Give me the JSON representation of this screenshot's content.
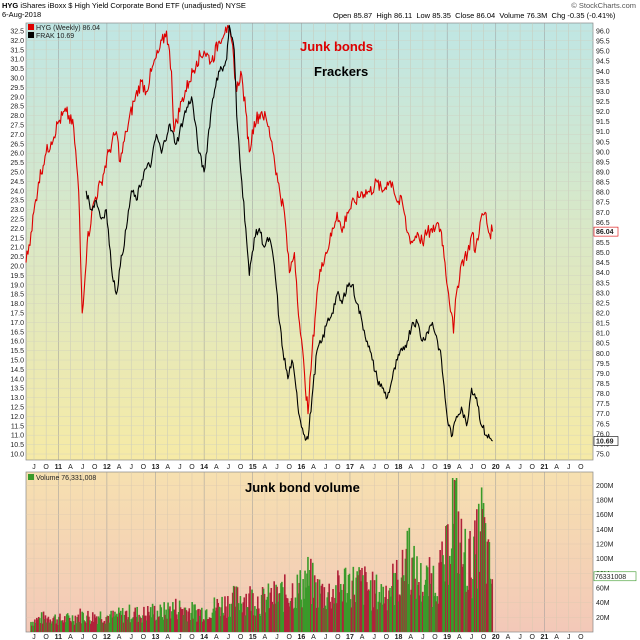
{
  "header": {
    "symbol": "HYG",
    "description": "iShares iBoxx $ High Yield Corporate Bond ETF (unadjusted)",
    "exchange": "NYSE",
    "date": "6-Aug-2018",
    "brand": "© StockCharts.com",
    "open_label": "Open",
    "open": "85.87",
    "high_label": "High",
    "high": "86.11",
    "low_label": "Low",
    "low": "85.35",
    "close_label": "Close",
    "close": "86.04",
    "volume_label": "Volume",
    "volume": "76.3M",
    "chg_label": "Chg",
    "chg": "-0.35 (-0.41%)"
  },
  "colors": {
    "hyg": "#dd0000",
    "frak": "#000000",
    "vol_up": "#3a9a2a",
    "vol_down": "#b0223a",
    "price_bg_top": "#bfe6e4",
    "price_bg_bottom": "#f6eaa6",
    "vol_bg_top": "#f6e0b0",
    "vol_bg_bottom": "#f3c8b8"
  },
  "chart_data": [
    {
      "type": "line",
      "panel": "price",
      "legend": [
        "HYG (Weekly) 86.04",
        "FRAK 10.69"
      ],
      "annotations": [
        {
          "text": "Junk bonds",
          "color": "#dd0000"
        },
        {
          "text": "Frackers",
          "color": "#000000"
        }
      ],
      "x_ticks": [
        "J",
        "O",
        "11",
        "A",
        "J",
        "O",
        "12",
        "A",
        "J",
        "O",
        "13",
        "A",
        "J",
        "O",
        "14",
        "A",
        "J",
        "O",
        "15",
        "A",
        "J",
        "O",
        "16",
        "A",
        "J",
        "O",
        "17",
        "A",
        "J",
        "O",
        "18",
        "A",
        "J",
        "O",
        "19",
        "A",
        "J",
        "O",
        "20",
        "A",
        "J",
        "O",
        "21",
        "A",
        "J",
        "O"
      ],
      "left_axis": {
        "label_ticks": [
          "10.0",
          "10.5",
          "11.0",
          "11.5",
          "12.0",
          "12.5",
          "13.0",
          "13.5",
          "14.0",
          "14.5",
          "15.0",
          "15.5",
          "16.0",
          "16.5",
          "17.0",
          "17.5",
          "18.0",
          "18.5",
          "19.0",
          "19.5",
          "20.0",
          "20.5",
          "21.0",
          "21.5",
          "22.0",
          "22.5",
          "23.0",
          "23.5",
          "24.0",
          "24.5",
          "25.0",
          "25.5",
          "26.0",
          "26.5",
          "27.0",
          "27.5",
          "28.0",
          "28.5",
          "29.0",
          "29.5",
          "30.0",
          "30.5",
          "31.0",
          "31.5",
          "32.0",
          "32.5"
        ],
        "ylim": [
          10.0,
          32.5
        ]
      },
      "right_axis": {
        "label_ticks": [
          "75.0",
          "75.5",
          "76.0",
          "76.5",
          "77.0",
          "77.5",
          "78.0",
          "78.5",
          "79.0",
          "79.5",
          "80.0",
          "80.5",
          "81.0",
          "81.5",
          "82.0",
          "82.5",
          "83.0",
          "83.5",
          "84.0",
          "84.5",
          "85.0",
          "85.5",
          "86.0",
          "86.5",
          "87.0",
          "87.5",
          "88.0",
          "88.5",
          "89.0",
          "89.5",
          "90.0",
          "90.5",
          "91.0",
          "91.5",
          "92.0",
          "92.5",
          "93.0",
          "93.5",
          "94.0",
          "94.5",
          "95.0",
          "95.5",
          "96.0"
        ],
        "ylim": [
          75.0,
          96.0
        ]
      },
      "x_range": [
        2010.5,
        2021.8
      ],
      "last_values": {
        "hyg": "86.04",
        "frak": "10.69"
      },
      "series": [
        {
          "name": "HYG",
          "axis": "right",
          "points": [
            [
              2010.5,
              84.5
            ],
            [
              2010.6,
              86.0
            ],
            [
              2010.75,
              88.5
            ],
            [
              2010.88,
              89.8
            ],
            [
              2011.0,
              90.5
            ],
            [
              2011.15,
              91.5
            ],
            [
              2011.3,
              92.0
            ],
            [
              2011.45,
              91.2
            ],
            [
              2011.55,
              88.0
            ],
            [
              2011.62,
              82.0
            ],
            [
              2011.72,
              85.5
            ],
            [
              2011.85,
              87.5
            ],
            [
              2012.0,
              88.5
            ],
            [
              2012.15,
              90.0
            ],
            [
              2012.3,
              91.0
            ],
            [
              2012.38,
              89.5
            ],
            [
              2012.5,
              91.0
            ],
            [
              2012.65,
              92.5
            ],
            [
              2012.8,
              93.5
            ],
            [
              2012.9,
              93.0
            ],
            [
              2013.0,
              94.0
            ],
            [
              2013.15,
              95.0
            ],
            [
              2013.3,
              96.0
            ],
            [
              2013.4,
              94.0
            ],
            [
              2013.45,
              91.0
            ],
            [
              2013.6,
              92.5
            ],
            [
              2013.75,
              93.5
            ],
            [
              2013.9,
              94.5
            ],
            [
              2014.05,
              95.0
            ],
            [
              2014.2,
              94.5
            ],
            [
              2014.35,
              95.5
            ],
            [
              2014.48,
              96.2
            ],
            [
              2014.6,
              95.5
            ],
            [
              2014.7,
              93.0
            ],
            [
              2014.78,
              94.0
            ],
            [
              2014.88,
              92.0
            ],
            [
              2014.95,
              90.0
            ],
            [
              2015.05,
              91.5
            ],
            [
              2015.2,
              92.0
            ],
            [
              2015.3,
              91.5
            ],
            [
              2015.4,
              90.5
            ],
            [
              2015.52,
              88.5
            ],
            [
              2015.65,
              87.0
            ],
            [
              2015.75,
              84.0
            ],
            [
              2015.85,
              85.0
            ],
            [
              2015.95,
              81.5
            ],
            [
              2016.05,
              79.0
            ],
            [
              2016.12,
              77.0
            ],
            [
              2016.2,
              80.0
            ],
            [
              2016.3,
              83.0
            ],
            [
              2016.4,
              84.5
            ],
            [
              2016.55,
              85.5
            ],
            [
              2016.7,
              87.0
            ],
            [
              2016.8,
              86.0
            ],
            [
              2016.9,
              87.0
            ],
            [
              2017.05,
              87.5
            ],
            [
              2017.2,
              88.0
            ],
            [
              2017.35,
              88.0
            ],
            [
              2017.5,
              88.5
            ],
            [
              2017.6,
              88.0
            ],
            [
              2017.7,
              88.5
            ],
            [
              2017.8,
              88.5
            ],
            [
              2017.9,
              87.5
            ],
            [
              2018.0,
              87.5
            ],
            [
              2018.1,
              86.0
            ],
            [
              2018.2,
              85.5
            ],
            [
              2018.3,
              86.0
            ],
            [
              2018.4,
              85.5
            ],
            [
              2018.5,
              86.0
            ],
            [
              2018.6,
              86.0
            ],
            [
              2018.7,
              86.5
            ],
            [
              2018.78,
              86.0
            ],
            [
              2018.85,
              84.5
            ],
            [
              2018.92,
              83.0
            ],
            [
              2018.98,
              82.0
            ],
            [
              2019.02,
              81.0
            ],
            [
              2019.08,
              83.0
            ],
            [
              2019.18,
              84.5
            ],
            [
              2019.3,
              85.0
            ],
            [
              2019.4,
              86.0
            ],
            [
              2019.45,
              85.0
            ],
            [
              2019.55,
              86.5
            ],
            [
              2019.65,
              87.0
            ],
            [
              2019.72,
              86.0
            ],
            [
              2019.8,
              86.04
            ]
          ]
        },
        {
          "name": "FRAK",
          "axis": "left",
          "points": [
            [
              2011.7,
              24.0
            ],
            [
              2011.8,
              23.0
            ],
            [
              2011.9,
              23.5
            ],
            [
              2012.0,
              22.5
            ],
            [
              2012.1,
              23.0
            ],
            [
              2012.2,
              20.0
            ],
            [
              2012.3,
              18.5
            ],
            [
              2012.38,
              20.0
            ],
            [
              2012.5,
              22.0
            ],
            [
              2012.6,
              24.0
            ],
            [
              2012.7,
              23.5
            ],
            [
              2012.85,
              25.0
            ],
            [
              2013.0,
              25.5
            ],
            [
              2013.1,
              27.0
            ],
            [
              2013.2,
              26.0
            ],
            [
              2013.35,
              27.5
            ],
            [
              2013.5,
              26.5
            ],
            [
              2013.65,
              28.0
            ],
            [
              2013.8,
              29.0
            ],
            [
              2013.95,
              26.0
            ],
            [
              2014.05,
              25.0
            ],
            [
              2014.2,
              28.5
            ],
            [
              2014.3,
              30.0
            ],
            [
              2014.4,
              30.5
            ],
            [
              2014.5,
              31.0
            ],
            [
              2014.55,
              32.8
            ],
            [
              2014.65,
              31.5
            ],
            [
              2014.7,
              28.0
            ],
            [
              2014.8,
              24.5
            ],
            [
              2014.88,
              22.0
            ],
            [
              2014.95,
              19.5
            ],
            [
              2015.05,
              21.5
            ],
            [
              2015.15,
              22.0
            ],
            [
              2015.25,
              21.0
            ],
            [
              2015.35,
              21.5
            ],
            [
              2015.45,
              20.0
            ],
            [
              2015.55,
              17.0
            ],
            [
              2015.62,
              15.5
            ],
            [
              2015.72,
              14.0
            ],
            [
              2015.8,
              15.0
            ],
            [
              2015.88,
              13.5
            ],
            [
              2015.95,
              12.0
            ],
            [
              2016.05,
              11.0
            ],
            [
              2016.12,
              10.8
            ],
            [
              2016.2,
              13.0
            ],
            [
              2016.3,
              15.5
            ],
            [
              2016.4,
              16.0
            ],
            [
              2016.5,
              17.0
            ],
            [
              2016.6,
              17.5
            ],
            [
              2016.7,
              18.5
            ],
            [
              2016.8,
              18.0
            ],
            [
              2016.9,
              19.0
            ],
            [
              2017.0,
              19.0
            ],
            [
              2017.1,
              18.0
            ],
            [
              2017.2,
              17.0
            ],
            [
              2017.3,
              16.0
            ],
            [
              2017.4,
              15.0
            ],
            [
              2017.5,
              14.0
            ],
            [
              2017.6,
              13.5
            ],
            [
              2017.7,
              13.0
            ],
            [
              2017.8,
              14.0
            ],
            [
              2017.9,
              15.0
            ],
            [
              2018.0,
              15.5
            ],
            [
              2018.1,
              16.0
            ],
            [
              2018.2,
              17.0
            ],
            [
              2018.3,
              17.0
            ],
            [
              2018.4,
              16.0
            ],
            [
              2018.5,
              16.5
            ],
            [
              2018.6,
              17.0
            ],
            [
              2018.7,
              16.0
            ],
            [
              2018.78,
              15.0
            ],
            [
              2018.85,
              13.0
            ],
            [
              2018.92,
              11.5
            ],
            [
              2019.0,
              11.0
            ],
            [
              2019.08,
              12.0
            ],
            [
              2019.18,
              12.5
            ],
            [
              2019.28,
              11.5
            ],
            [
              2019.38,
              13.5
            ],
            [
              2019.48,
              13.0
            ],
            [
              2019.58,
              11.5
            ],
            [
              2019.68,
              11.0
            ],
            [
              2019.8,
              10.69
            ]
          ]
        }
      ]
    },
    {
      "type": "bar",
      "panel": "volume",
      "legend": "Volume 76,331,008",
      "annotation": "Junk bond volume",
      "ylim": [
        0,
        210
      ],
      "y_unit": "M",
      "right_axis_ticks": [
        "20M",
        "40M",
        "60M",
        "80M",
        "100M",
        "120M",
        "140M",
        "160M",
        "180M",
        "200M"
      ],
      "last_value_label": "76331008",
      "x_range": [
        2010.5,
        2021.8
      ],
      "points": [
        [
          2010.6,
          15
        ],
        [
          2010.8,
          20
        ],
        [
          2011.0,
          22
        ],
        [
          2011.2,
          18
        ],
        [
          2011.4,
          20
        ],
        [
          2011.6,
          25
        ],
        [
          2011.8,
          22
        ],
        [
          2012.0,
          25
        ],
        [
          2012.2,
          22
        ],
        [
          2012.4,
          25
        ],
        [
          2012.6,
          28
        ],
        [
          2012.8,
          25
        ],
        [
          2013.0,
          30
        ],
        [
          2013.2,
          28
        ],
        [
          2013.4,
          35
        ],
        [
          2013.6,
          35
        ],
        [
          2013.8,
          30
        ],
        [
          2014.0,
          30
        ],
        [
          2014.2,
          35
        ],
        [
          2014.4,
          40
        ],
        [
          2014.6,
          45
        ],
        [
          2014.8,
          50
        ],
        [
          2015.0,
          50
        ],
        [
          2015.2,
          45
        ],
        [
          2015.4,
          50
        ],
        [
          2015.6,
          55
        ],
        [
          2015.8,
          60
        ],
        [
          2016.0,
          65
        ],
        [
          2016.1,
          80
        ],
        [
          2016.2,
          70
        ],
        [
          2016.3,
          60
        ],
        [
          2016.5,
          55
        ],
        [
          2016.7,
          60
        ],
        [
          2016.9,
          75
        ],
        [
          2017.0,
          70
        ],
        [
          2017.2,
          70
        ],
        [
          2017.4,
          60
        ],
        [
          2017.6,
          55
        ],
        [
          2017.8,
          70
        ],
        [
          2018.0,
          80
        ],
        [
          2018.1,
          130
        ],
        [
          2018.2,
          90
        ],
        [
          2018.4,
          70
        ],
        [
          2018.6,
          75
        ],
        [
          2018.8,
          90
        ],
        [
          2018.9,
          110
        ],
        [
          2019.0,
          200
        ],
        [
          2019.1,
          150
        ],
        [
          2019.2,
          110
        ],
        [
          2019.4,
          100
        ],
        [
          2019.5,
          125
        ],
        [
          2019.6,
          160
        ],
        [
          2019.7,
          100
        ],
        [
          2019.8,
          76
        ]
      ]
    }
  ]
}
